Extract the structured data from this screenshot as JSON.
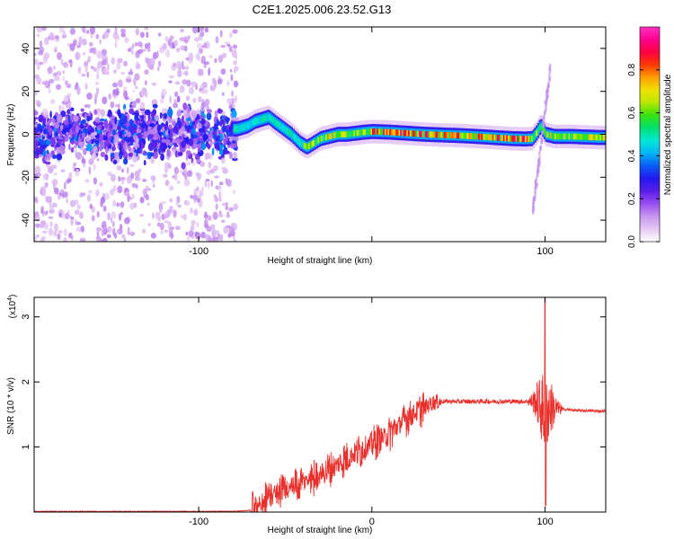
{
  "title": "C2E1.2025.006.23.52.G13",
  "chart_data": [
    {
      "type": "heatmap",
      "xlabel": "Height of straight line (km)",
      "ylabel": "Frequency (Hz)",
      "xlim": [
        -195,
        135
      ],
      "ylim": [
        -50,
        50
      ],
      "xticks": [
        -100,
        0,
        100
      ],
      "xtick_labels": [
        "-100",
        "",
        "100"
      ],
      "yticks": [
        -40,
        -20,
        0,
        20,
        40
      ],
      "ytick_labels": [
        "-40",
        "-20",
        "0",
        "20",
        "40"
      ],
      "colorbar": {
        "label": "Normalized spectral amplitude",
        "range": [
          0,
          1
        ],
        "ticks": [
          0,
          0.2,
          0.4,
          0.6,
          0.8
        ],
        "tick_labels": [
          "0.0",
          "0.2",
          "0.4",
          "0.6",
          "0.8"
        ],
        "colors": [
          "#ffffff",
          "#e6c8f5",
          "#c896ee",
          "#9a4ff0",
          "#5a1ee8",
          "#2218f0",
          "#0a5cf5",
          "#00b4f5",
          "#00e8d8",
          "#00e070",
          "#38e010",
          "#b8e800",
          "#f0e000",
          "#ffa000",
          "#ff3a00",
          "#ff0040",
          "#ff0090",
          "#ff30c0"
        ]
      },
      "ridge": {
        "x": [
          -78,
          -72,
          -68,
          -64,
          -60,
          -57,
          -52,
          -47,
          -42,
          -38,
          -34,
          -30,
          -25,
          -20,
          -15,
          -10,
          -5,
          0,
          10,
          20,
          30,
          40,
          50,
          60,
          70,
          80,
          88,
          92,
          95,
          97,
          100,
          105,
          110,
          115,
          120,
          125,
          130,
          135
        ],
        "y": [
          2.5,
          4,
          6,
          7,
          8,
          6,
          3,
          0,
          -4,
          -6,
          -4,
          -2,
          -1,
          0,
          0,
          0.5,
          1,
          1.3,
          1,
          0.5,
          0,
          -0.3,
          -0.6,
          -1,
          -1.5,
          -2,
          -2.2,
          -2,
          1,
          4,
          0,
          -1,
          -1,
          -1,
          -1.2,
          -1.3,
          -1.5,
          -1.5
        ]
      }
    },
    {
      "type": "line",
      "xlabel": "Height of straight line (km)",
      "ylabel": "SNR (10 * v/v)",
      "y_multiplier": "(x10",
      "y_multiplier_exp": "4",
      "y_multiplier_close": ")",
      "xlim": [
        -195,
        135
      ],
      "ylim": [
        0,
        3.3
      ],
      "xticks": [
        -100,
        0,
        100
      ],
      "xtick_labels": [
        "-100",
        "0",
        "100"
      ],
      "yticks": [
        1,
        2,
        3
      ],
      "ytick_labels": [
        "1",
        "2",
        "3"
      ],
      "color": "#e8302c",
      "envelope": {
        "x": [
          -195,
          -80,
          -68,
          -62,
          -55,
          -40,
          -25,
          -10,
          0,
          10,
          20,
          30,
          35,
          40,
          60,
          80,
          90,
          95,
          98,
          100,
          102,
          105,
          110,
          120,
          135
        ],
        "y": [
          0.01,
          0.01,
          0.03,
          0.2,
          0.3,
          0.45,
          0.65,
          0.9,
          1.05,
          1.2,
          1.45,
          1.6,
          1.68,
          1.7,
          1.7,
          1.7,
          1.7,
          1.7,
          1.6,
          1.5,
          1.6,
          1.6,
          1.58,
          1.56,
          1.55
        ]
      }
    }
  ]
}
